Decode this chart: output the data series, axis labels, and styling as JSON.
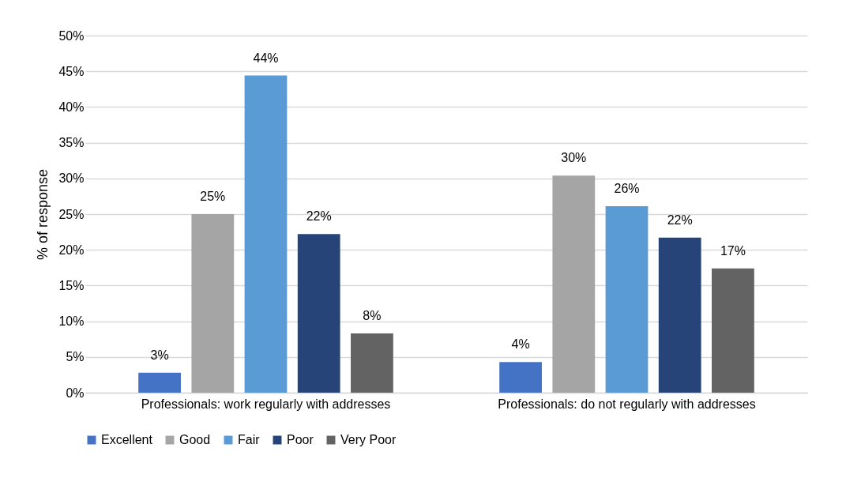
{
  "chart_data": {
    "type": "bar",
    "ylabel": "% of response",
    "categories": [
      "Professionals: work regularly with addresses",
      "Professionals: do not regularly with addresses"
    ],
    "series": [
      {
        "name": "Excellent",
        "color": "#4472c4",
        "values": [
          2.8,
          4.3
        ],
        "value_labels": [
          "3%",
          "4%"
        ]
      },
      {
        "name": "Good",
        "color": "#a5a5a5",
        "values": [
          25,
          30.4
        ],
        "value_labels": [
          "25%",
          "30%"
        ]
      },
      {
        "name": "Fair",
        "color": "#5b9bd5",
        "values": [
          44.4,
          26.1
        ],
        "value_labels": [
          "44%",
          "26%"
        ]
      },
      {
        "name": "Poor",
        "color": "#264478",
        "values": [
          22.2,
          21.7
        ],
        "value_labels": [
          "22%",
          "22%"
        ]
      },
      {
        "name": "Very Poor",
        "color": "#636363",
        "values": [
          8.3,
          17.4
        ],
        "value_labels": [
          "8%",
          "17%"
        ]
      }
    ],
    "ylim": [
      0,
      50
    ],
    "yticks": [
      {
        "value": 0,
        "label": "0%"
      },
      {
        "value": 5,
        "label": "5%"
      },
      {
        "value": 10,
        "label": "10%"
      },
      {
        "value": 15,
        "label": "15%"
      },
      {
        "value": 20,
        "label": "20%"
      },
      {
        "value": 25,
        "label": "25%"
      },
      {
        "value": 30,
        "label": "30%"
      },
      {
        "value": 35,
        "label": "35%"
      },
      {
        "value": 40,
        "label": "40%"
      },
      {
        "value": 45,
        "label": "45%"
      },
      {
        "value": 50,
        "label": "50%"
      }
    ],
    "grid": "y",
    "legend": "bottom"
  }
}
